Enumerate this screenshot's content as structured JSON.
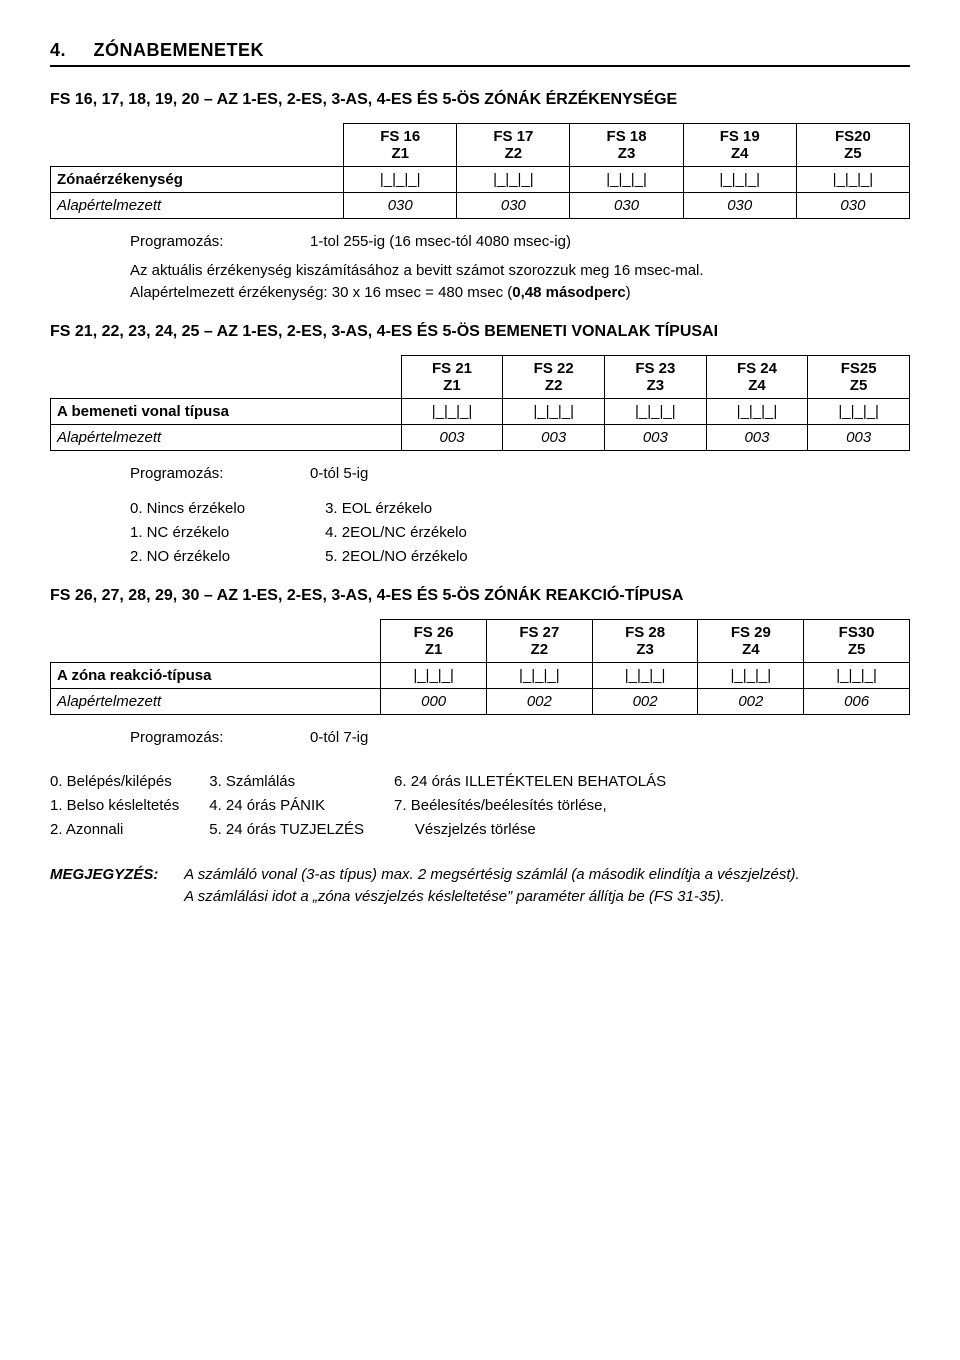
{
  "section": {
    "number": "4.",
    "title": "ZÓNABEMENETEK"
  },
  "sub1": {
    "heading": "FS 16, 17, 18, 19, 20 – AZ 1-ES, 2-ES, 3-AS, 4-ES ÉS 5-ÖS ZÓNÁK ÉRZÉKENYSÉGE",
    "table": {
      "headers": [
        {
          "top": "FS 16",
          "bot": "Z1"
        },
        {
          "top": "FS 17",
          "bot": "Z2"
        },
        {
          "top": "FS 18",
          "bot": "Z3"
        },
        {
          "top": "FS 19",
          "bot": "Z4"
        },
        {
          "top": "FS20",
          "bot": "Z5"
        }
      ],
      "rows": [
        {
          "label": "Zónaérzékenység",
          "values": [
            "|_|_|_|",
            "|_|_|_|",
            "|_|_|_|",
            "|_|_|_|",
            "|_|_|_|"
          ],
          "italic": false
        },
        {
          "label": "Alapértelmezett",
          "values": [
            "030",
            "030",
            "030",
            "030",
            "030"
          ],
          "italic": true
        }
      ]
    },
    "prog": {
      "label": "Programozás:",
      "value": "1-tol 255-ig (16 msec-tól 4080 msec-ig)",
      "line2": "Az aktuális érzékenység kiszámításához a bevitt számot szorozzuk meg 16 msec-mal.",
      "line3_a": "Alapértelmezett érzékenység: 30 x 16 msec = 480 msec (",
      "line3_b": "0,48 másodperc",
      "line3_c": ")"
    }
  },
  "sub2": {
    "heading": "FS 21, 22, 23, 24, 25 – AZ 1-ES, 2-ES, 3-AS, 4-ES ÉS 5-ÖS BEMENETI VONALAK TÍPUSAI",
    "table": {
      "headers": [
        {
          "top": "FS 21",
          "bot": "Z1"
        },
        {
          "top": "FS 22",
          "bot": "Z2"
        },
        {
          "top": "FS 23",
          "bot": "Z3"
        },
        {
          "top": "FS 24",
          "bot": "Z4"
        },
        {
          "top": "FS25",
          "bot": "Z5"
        }
      ],
      "rows": [
        {
          "label": "A bemeneti vonal típusa",
          "values": [
            "|_|_|_|",
            "|_|_|_|",
            "|_|_|_|",
            "|_|_|_|",
            "|_|_|_|"
          ],
          "italic": false
        },
        {
          "label": "Alapértelmezett",
          "values": [
            "003",
            "003",
            "003",
            "003",
            "003"
          ],
          "italic": true
        }
      ]
    },
    "prog": {
      "label": "Programozás:",
      "value": "0-tól 5-ig"
    },
    "list_left": [
      "0.    Nincs érzékelo",
      "1.    NC érzékelo",
      "2.    NO érzékelo"
    ],
    "list_right": [
      "3.    EOL érzékelo",
      "4.    2EOL/NC érzékelo",
      "5.    2EOL/NO érzékelo"
    ]
  },
  "sub3": {
    "heading": "FS 26, 27, 28, 29, 30 – AZ 1-ES, 2-ES, 3-AS, 4-ES ÉS 5-ÖS ZÓNÁK REAKCIÓ-TÍPUSA",
    "table": {
      "headers": [
        {
          "top": "FS 26",
          "bot": "Z1"
        },
        {
          "top": "FS 27",
          "bot": "Z2"
        },
        {
          "top": "FS 28",
          "bot": "Z3"
        },
        {
          "top": "FS 29",
          "bot": "Z4"
        },
        {
          "top": "FS30",
          "bot": "Z5"
        }
      ],
      "rows": [
        {
          "label": "A zóna reakció-típusa",
          "values": [
            "|_|_|_|",
            "|_|_|_|",
            "|_|_|_|",
            "|_|_|_|",
            "|_|_|_|"
          ],
          "italic": false
        },
        {
          "label": "Alapértelmezett",
          "values": [
            "000",
            "002",
            "002",
            "002",
            "006"
          ],
          "italic": true
        }
      ]
    },
    "prog": {
      "label": "Programozás:",
      "value": "0-tól 7-ig"
    },
    "bottom_cols": [
      [
        "0.  Belépés/kilépés",
        "1.  Belso késleltetés",
        "2.  Azonnali"
      ],
      [
        "3.  Számlálás",
        "4.  24 órás PÁNIK",
        "5.  24 órás TUZJELZÉS"
      ],
      [
        "6.  24 órás ILLETÉKTELEN BEHATOLÁS",
        "7.  Beélesítés/beélesítés törlése,",
        "     Vészjelzés törlése"
      ]
    ]
  },
  "note": {
    "label": "MEGJEGYZÉS:",
    "text1": "A számláló vonal (3-as típus) max. 2 megsértésig számlál (a második elindítja a vészjelzést).",
    "text2": "A számlálási idot a „zóna vészjelzés késleltetése” paraméter állítja be (FS 31-35)."
  }
}
